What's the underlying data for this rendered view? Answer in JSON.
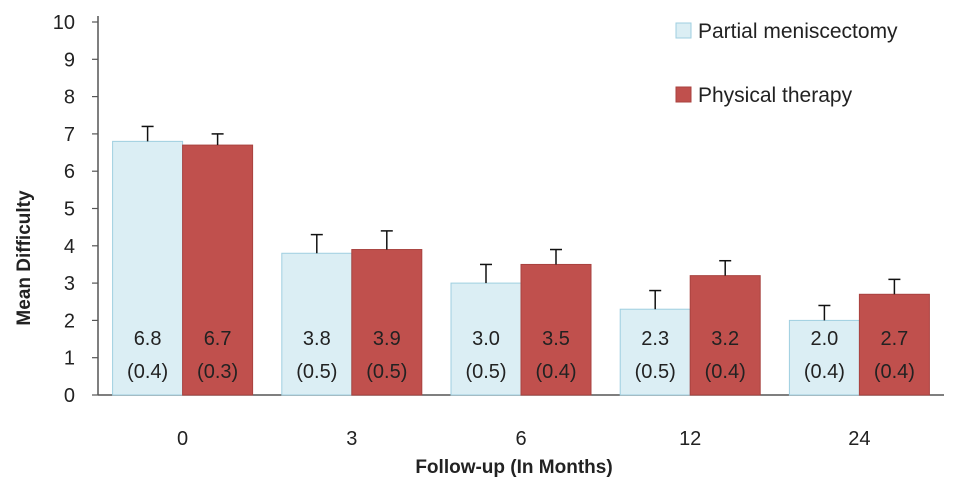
{
  "chart_data": {
    "type": "bar",
    "xlabel": "Follow-up (In Months)",
    "ylabel": "Mean Difficulty",
    "ylim": [
      0,
      10
    ],
    "yticks": [
      "0",
      "1",
      "2",
      "3",
      "4",
      "5",
      "6",
      "7",
      "8",
      "9",
      "10"
    ],
    "categories": [
      "0",
      "3",
      "6",
      "12",
      "24"
    ],
    "grid": false,
    "legend_position": "top-right",
    "series": [
      {
        "name": "Partial meniscectomy",
        "color": "#dbeef4",
        "border": "#9fcfe0",
        "values": [
          6.8,
          3.8,
          3.0,
          2.3,
          2.0
        ],
        "errors": [
          0.4,
          0.5,
          0.5,
          0.5,
          0.4
        ],
        "value_labels": [
          "6.8",
          "3.8",
          "3.0",
          "2.3",
          "2.0"
        ],
        "error_labels": [
          "(0.4)",
          "(0.5)",
          "(0.5)",
          "(0.5)",
          "(0.4)"
        ]
      },
      {
        "name": "Physical therapy",
        "color": "#c0504d",
        "border": "#a9423f",
        "values": [
          6.7,
          3.9,
          3.5,
          3.2,
          2.7
        ],
        "errors": [
          0.3,
          0.5,
          0.4,
          0.4,
          0.4
        ],
        "value_labels": [
          "6.7",
          "3.9",
          "3.5",
          "3.2",
          "2.7"
        ],
        "error_labels": [
          "(0.3)",
          "(0.5)",
          "(0.4)",
          "(0.4)",
          "(0.4)"
        ]
      }
    ]
  }
}
